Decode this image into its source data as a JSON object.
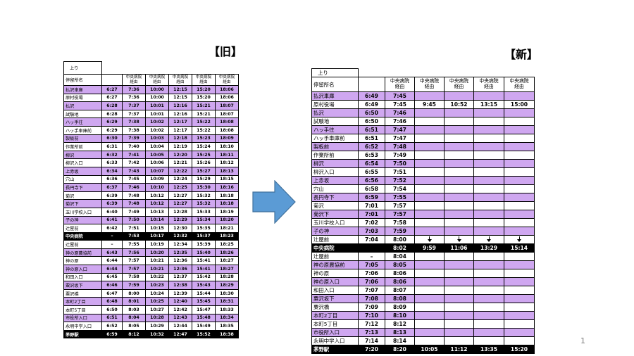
{
  "old": {
    "heading": "【旧】",
    "direction": "上り",
    "stop_header": "停留所名",
    "column_headers": [
      "",
      "中央病院\n経由",
      "中央病院\n経由",
      "中央病院\n経由",
      "中央病院\n経由",
      "中央病院\n経由"
    ],
    "rows": [
      {
        "name": "払沢車庫",
        "color": "purple",
        "times": [
          "6:27",
          "7:36",
          "10:00",
          "12:15",
          "15:20",
          "18:06"
        ]
      },
      {
        "name": "原村役場",
        "color": "white",
        "times": [
          "6:27",
          "7:36",
          "10:00",
          "12:15",
          "15:20",
          "18:06"
        ]
      },
      {
        "name": "払沢",
        "color": "purple",
        "times": [
          "6:28",
          "7:37",
          "10:01",
          "12:16",
          "15:21",
          "18:07"
        ]
      },
      {
        "name": "試験地",
        "color": "white",
        "times": [
          "6:28",
          "7:37",
          "10:01",
          "12:16",
          "15:21",
          "18:07"
        ]
      },
      {
        "name": "ハッ手往",
        "color": "purple",
        "times": [
          "6:29",
          "7:38",
          "10:02",
          "12:17",
          "15:22",
          "18:08"
        ]
      },
      {
        "name": "ハッ手車庫前",
        "color": "white",
        "times": [
          "6:29",
          "7:38",
          "10:02",
          "12:17",
          "15:22",
          "18:08"
        ]
      },
      {
        "name": "製板前",
        "color": "purple",
        "times": [
          "6:30",
          "7:39",
          "10:03",
          "12:18",
          "15:23",
          "18:09"
        ]
      },
      {
        "name": "作業所前",
        "color": "white",
        "times": [
          "6:31",
          "7:40",
          "10:04",
          "12:19",
          "15:24",
          "18:10"
        ]
      },
      {
        "name": "柳沢",
        "color": "purple",
        "times": [
          "6:32",
          "7:41",
          "10:05",
          "12:20",
          "15:25",
          "18:11"
        ]
      },
      {
        "name": "柳沢入口",
        "color": "white",
        "times": [
          "6:33",
          "7:42",
          "10:06",
          "12:21",
          "15:26",
          "18:12"
        ]
      },
      {
        "name": "上赤坂",
        "color": "purple",
        "times": [
          "6:34",
          "7:43",
          "10:07",
          "12:22",
          "15:27",
          "18:13"
        ]
      },
      {
        "name": "穴山",
        "color": "white",
        "times": [
          "6:36",
          "7:45",
          "10:09",
          "12:24",
          "15:29",
          "18:15"
        ]
      },
      {
        "name": "長円寺下",
        "color": "purple",
        "times": [
          "6:37",
          "7:46",
          "10:10",
          "12:25",
          "15:30",
          "18:16"
        ]
      },
      {
        "name": "菊沢",
        "color": "white",
        "times": [
          "6:39",
          "7:48",
          "10:12",
          "12:27",
          "15:32",
          "18:18"
        ]
      },
      {
        "name": "菊沢下",
        "color": "purple",
        "times": [
          "6:39",
          "7:48",
          "10:12",
          "12:27",
          "15:32",
          "18:18"
        ]
      },
      {
        "name": "玉川学校入口",
        "color": "white",
        "times": [
          "6:40",
          "7:49",
          "10:13",
          "12:28",
          "15:33",
          "18:19"
        ]
      },
      {
        "name": "子の神",
        "color": "purple",
        "times": [
          "6:41",
          "7:50",
          "10:14",
          "12:29",
          "15:34",
          "18:20"
        ]
      },
      {
        "name": "辻屋前",
        "color": "white",
        "times": [
          "6:42",
          "7:51",
          "10:15",
          "12:30",
          "15:35",
          "18:21"
        ]
      },
      {
        "name": "中央病院",
        "color": "black",
        "times": [
          "–",
          "7:53",
          "10:17",
          "12:32",
          "15:37",
          "18:23"
        ]
      },
      {
        "name": "辻屋前",
        "color": "white",
        "times": [
          "–",
          "7:55",
          "10:19",
          "12:34",
          "15:39",
          "18:25"
        ]
      },
      {
        "name": "神の原農協前",
        "color": "purple",
        "times": [
          "6:43",
          "7:56",
          "10:20",
          "12:35",
          "15:40",
          "18:26"
        ]
      },
      {
        "name": "神の原",
        "color": "white",
        "times": [
          "6:44",
          "7:57",
          "10:21",
          "12:36",
          "15:41",
          "18:27"
        ]
      },
      {
        "name": "神の原入口",
        "color": "purple",
        "times": [
          "6:44",
          "7:57",
          "10:21",
          "12:36",
          "15:41",
          "18:27"
        ]
      },
      {
        "name": "和田入口",
        "color": "white",
        "times": [
          "6:45",
          "7:58",
          "10:22",
          "12:37",
          "15:42",
          "18:28"
        ]
      },
      {
        "name": "粟沢坂下",
        "color": "purple",
        "times": [
          "6:46",
          "7:59",
          "10:23",
          "12:38",
          "15:43",
          "18:29"
        ]
      },
      {
        "name": "粟沢橋",
        "color": "white",
        "times": [
          "6:47",
          "8:00",
          "10:24",
          "12:39",
          "15:44",
          "18:30"
        ]
      },
      {
        "name": "本町2丁目",
        "color": "purple",
        "times": [
          "6:48",
          "8:01",
          "10:25",
          "12:40",
          "15:45",
          "18:31"
        ]
      },
      {
        "name": "本町5丁目",
        "color": "white",
        "times": [
          "6:50",
          "8:03",
          "10:27",
          "12:42",
          "15:47",
          "18:33"
        ]
      },
      {
        "name": "市役所入口",
        "color": "purple",
        "times": [
          "6:51",
          "8:04",
          "10:28",
          "12:43",
          "15:48",
          "18:34"
        ]
      },
      {
        "name": "永明中学入口",
        "color": "white",
        "times": [
          "6:52",
          "8:05",
          "10:29",
          "12:44",
          "15:49",
          "18:35"
        ]
      },
      {
        "name": "茅野駅",
        "color": "black",
        "times": [
          "6:59",
          "8:12",
          "10:32",
          "12:47",
          "15:52",
          "18:38"
        ]
      }
    ]
  },
  "new": {
    "heading": "【新】",
    "direction": "上り",
    "stop_header": "停留所名",
    "column_headers": [
      "",
      "中央病院\n経由",
      "中央病院\n経由",
      "中央病院\n経由",
      "中央病院\n経由",
      "中央病院\n経由"
    ],
    "rows": [
      {
        "name": "払沢車庫",
        "color": "purple",
        "times": [
          "6:49",
          "7:45",
          "",
          "",
          "",
          ""
        ]
      },
      {
        "name": "原村役場",
        "color": "white",
        "times": [
          "6:49",
          "7:45",
          "9:45",
          "10:52",
          "13:15",
          "15:00"
        ]
      },
      {
        "name": "払沢",
        "color": "purple",
        "times": [
          "6:50",
          "7:46",
          "",
          "",
          "",
          ""
        ]
      },
      {
        "name": "試験地",
        "color": "white",
        "times": [
          "6:50",
          "7:46",
          "",
          "",
          "",
          ""
        ]
      },
      {
        "name": "ハッ手往",
        "color": "purple",
        "times": [
          "6:51",
          "7:47",
          "",
          "",
          "",
          ""
        ]
      },
      {
        "name": "ハッ手車庫前",
        "color": "white",
        "times": [
          "6:51",
          "7:47",
          "",
          "",
          "",
          ""
        ]
      },
      {
        "name": "製板前",
        "color": "purple",
        "times": [
          "6:52",
          "7:48",
          "",
          "",
          "",
          ""
        ]
      },
      {
        "name": "作業所前",
        "color": "white",
        "times": [
          "6:53",
          "7:49",
          "",
          "",
          "",
          ""
        ]
      },
      {
        "name": "柳沢",
        "color": "purple",
        "times": [
          "6:54",
          "7:50",
          "",
          "",
          "",
          ""
        ]
      },
      {
        "name": "柳沢入口",
        "color": "white",
        "times": [
          "6:55",
          "7:51",
          "",
          "",
          "",
          ""
        ]
      },
      {
        "name": "上赤坂",
        "color": "purple",
        "times": [
          "6:56",
          "7:52",
          "",
          "",
          "",
          ""
        ]
      },
      {
        "name": "穴山",
        "color": "white",
        "times": [
          "6:58",
          "7:54",
          "",
          "",
          "",
          ""
        ]
      },
      {
        "name": "長円寺下",
        "color": "purple",
        "times": [
          "6:59",
          "7:55",
          "",
          "",
          "",
          ""
        ]
      },
      {
        "name": "菊沢",
        "color": "white",
        "times": [
          "7:01",
          "7:57",
          "",
          "",
          "",
          ""
        ]
      },
      {
        "name": "菊沢下",
        "color": "purple",
        "times": [
          "7:01",
          "7:57",
          "",
          "",
          "",
          ""
        ]
      },
      {
        "name": "玉川学校入口",
        "color": "white",
        "times": [
          "7:02",
          "7:58",
          "",
          "",
          "",
          ""
        ]
      },
      {
        "name": "子の神",
        "color": "purple",
        "times": [
          "7:03",
          "7:59",
          "",
          "",
          "",
          ""
        ]
      },
      {
        "name": "辻屋前",
        "color": "white",
        "times": [
          "7:04",
          "8:00",
          "↓",
          "↓",
          "↓",
          "↓"
        ]
      },
      {
        "name": "中央病院",
        "color": "black",
        "times": [
          "",
          "8:02",
          "9:59",
          "11:06",
          "13:29",
          "15:14"
        ]
      },
      {
        "name": "辻屋前",
        "color": "white",
        "times": [
          "–",
          "8:04",
          "",
          "",
          "",
          ""
        ]
      },
      {
        "name": "神の原農協前",
        "color": "purple",
        "times": [
          "7:05",
          "8:05",
          "",
          "",
          "",
          ""
        ]
      },
      {
        "name": "神の原",
        "color": "white",
        "times": [
          "7:06",
          "8:06",
          "",
          "",
          "",
          ""
        ]
      },
      {
        "name": "神の原入口",
        "color": "purple",
        "times": [
          "7:06",
          "8:06",
          "",
          "",
          "",
          ""
        ]
      },
      {
        "name": "和田入口",
        "color": "white",
        "times": [
          "7:07",
          "8:07",
          "",
          "",
          "",
          ""
        ]
      },
      {
        "name": "粟沢坂下",
        "color": "purple",
        "times": [
          "7:08",
          "8:08",
          "",
          "",
          "",
          ""
        ]
      },
      {
        "name": "粟沢橋",
        "color": "white",
        "times": [
          "7:09",
          "8:09",
          "",
          "",
          "",
          ""
        ]
      },
      {
        "name": "本町2丁目",
        "color": "purple",
        "times": [
          "7:10",
          "8:10",
          "",
          "",
          "",
          ""
        ]
      },
      {
        "name": "本町5丁目",
        "color": "white",
        "times": [
          "7:12",
          "8:12",
          "",
          "",
          "",
          ""
        ]
      },
      {
        "name": "市役所入口",
        "color": "purple",
        "times": [
          "7:13",
          "8:13",
          "",
          "",
          "",
          ""
        ]
      },
      {
        "name": "永明中学入口",
        "color": "white",
        "times": [
          "7:14",
          "8:14",
          "",
          "",
          "",
          ""
        ]
      },
      {
        "name": "茅野駅",
        "color": "black",
        "times": [
          "7:20",
          "8:20",
          "10:05",
          "11:12",
          "13:35",
          "15:20"
        ]
      }
    ]
  },
  "arrow_icon": "right-arrow",
  "colors": {
    "purple_row": "#cfa7f0",
    "arrow_fill": "#5b9bd5",
    "arrow_stroke": "#41719c"
  },
  "page_number": "1"
}
